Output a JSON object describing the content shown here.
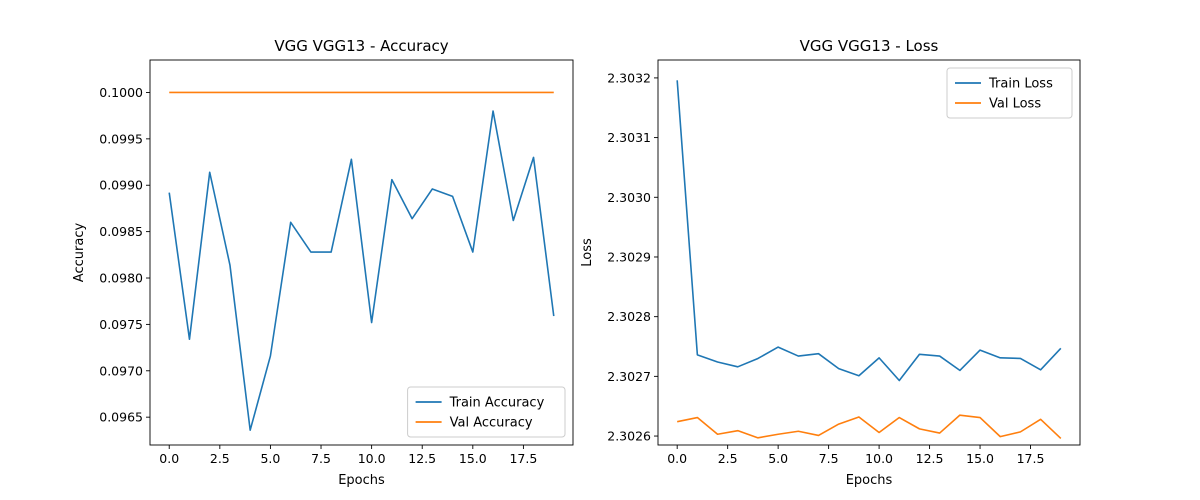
{
  "chart_data": [
    {
      "type": "line",
      "title": "VGG VGG13 - Accuracy",
      "xlabel": "Epochs",
      "ylabel": "Accuracy",
      "xlim": [
        -0.95,
        19.95
      ],
      "ylim": [
        0.0962,
        0.10035
      ],
      "xticks": [
        0,
        2.5,
        5,
        7.5,
        10,
        12.5,
        15,
        17.5
      ],
      "xtick_labels": [
        "0.0",
        "2.5",
        "5.0",
        "7.5",
        "10.0",
        "12.5",
        "15.0",
        "17.5"
      ],
      "yticks": [
        0.0965,
        0.097,
        0.0975,
        0.098,
        0.0985,
        0.099,
        0.0995,
        0.1
      ],
      "ytick_labels": [
        "0.0965",
        "0.0970",
        "0.0975",
        "0.0980",
        "0.0985",
        "0.0990",
        "0.0995",
        "0.1000"
      ],
      "legend_position": "lower-right",
      "grid": false,
      "x": [
        0,
        1,
        2,
        3,
        4,
        5,
        6,
        7,
        8,
        9,
        10,
        11,
        12,
        13,
        14,
        15,
        16,
        17,
        18,
        19
      ],
      "series": [
        {
          "name": "Train Accuracy",
          "color": "#1f77b4",
          "values": [
            0.09892,
            0.09734,
            0.09914,
            0.09814,
            0.09636,
            0.09716,
            0.0986,
            0.09828,
            0.09828,
            0.09928,
            0.09752,
            0.09906,
            0.09864,
            0.09896,
            0.09888,
            0.09828,
            0.0998,
            0.09862,
            0.0993,
            0.09759
          ]
        },
        {
          "name": "Val Accuracy",
          "color": "#ff7f0e",
          "values": [
            0.1,
            0.1,
            0.1,
            0.1,
            0.1,
            0.1,
            0.1,
            0.1,
            0.1,
            0.1,
            0.1,
            0.1,
            0.1,
            0.1,
            0.1,
            0.1,
            0.1,
            0.1,
            0.1,
            0.1
          ]
        }
      ]
    },
    {
      "type": "line",
      "title": "VGG VGG13 - Loss",
      "xlabel": "Epochs",
      "ylabel": "Loss",
      "xlim": [
        -0.95,
        19.95
      ],
      "ylim": [
        2.302585,
        2.30323
      ],
      "xticks": [
        0,
        2.5,
        5,
        7.5,
        10,
        12.5,
        15,
        17.5
      ],
      "xtick_labels": [
        "0.0",
        "2.5",
        "5.0",
        "7.5",
        "10.0",
        "12.5",
        "15.0",
        "17.5"
      ],
      "yticks": [
        2.3026,
        2.3027,
        2.3028,
        2.3029,
        2.303,
        2.3031,
        2.3032
      ],
      "ytick_labels": [
        "2.3026",
        "2.3027",
        "2.3028",
        "2.3029",
        "2.3030",
        "2.3031",
        "2.3032"
      ],
      "legend_position": "top-right",
      "grid": false,
      "x": [
        0,
        1,
        2,
        3,
        4,
        5,
        6,
        7,
        8,
        9,
        10,
        11,
        12,
        13,
        14,
        15,
        16,
        17,
        18,
        19
      ],
      "series": [
        {
          "name": "Train Loss",
          "color": "#1f77b4",
          "values": [
            2.303196,
            2.302736,
            2.302724,
            2.302716,
            2.30273,
            2.302749,
            2.302734,
            2.302738,
            2.302713,
            2.302701,
            2.302731,
            2.302693,
            2.302737,
            2.302734,
            2.30271,
            2.302744,
            2.302731,
            2.30273,
            2.302711,
            2.302747
          ]
        },
        {
          "name": "Val Loss",
          "color": "#ff7f0e",
          "values": [
            2.302624,
            2.302631,
            2.302603,
            2.302609,
            2.302597,
            2.302603,
            2.302608,
            2.302601,
            2.30262,
            2.302632,
            2.302606,
            2.302631,
            2.302612,
            2.302605,
            2.302635,
            2.302631,
            2.302599,
            2.302607,
            2.302628,
            2.302596
          ]
        }
      ]
    }
  ]
}
